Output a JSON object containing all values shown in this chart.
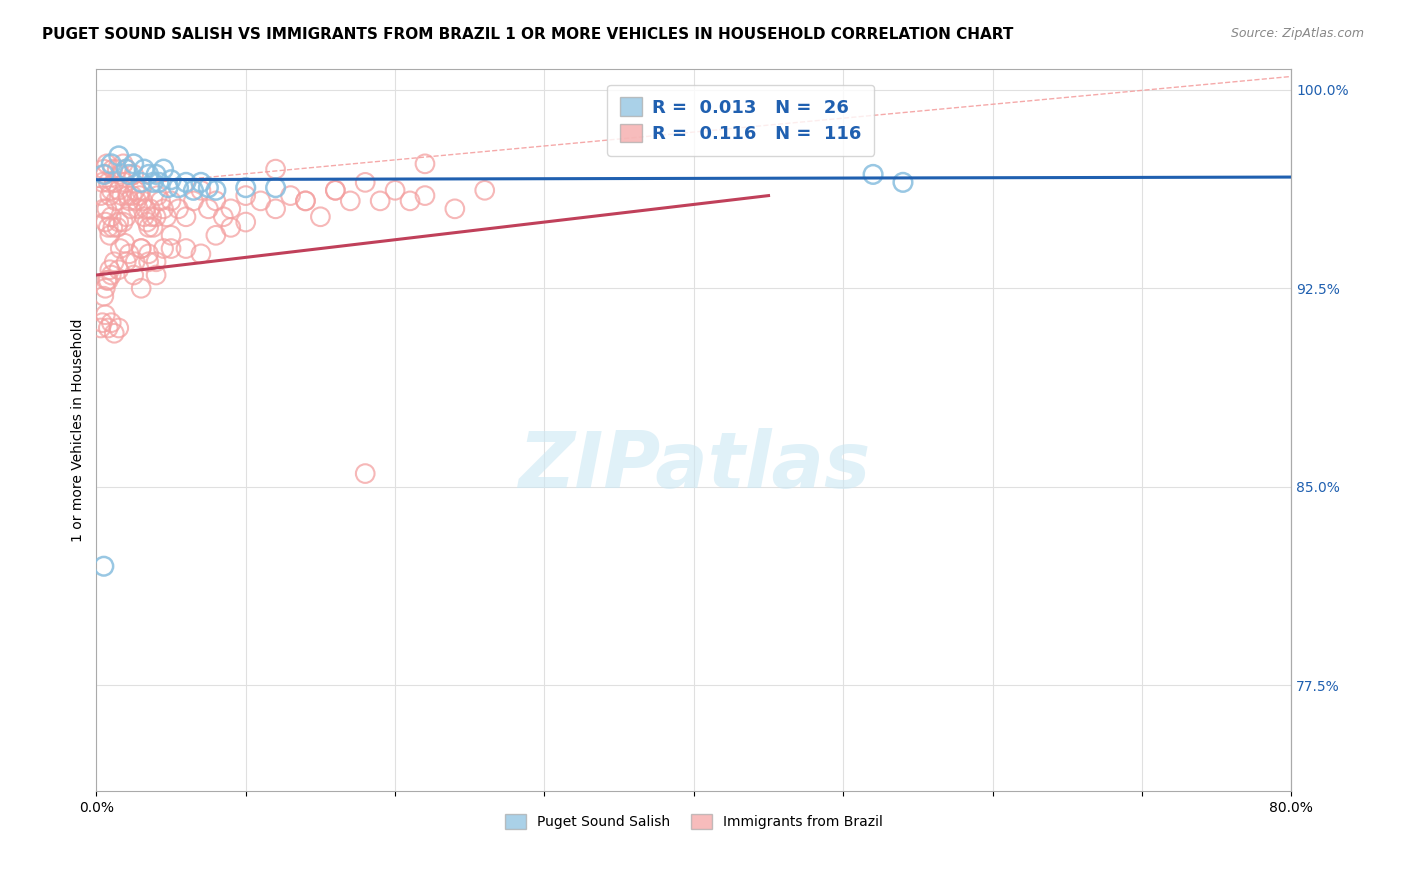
{
  "title": "PUGET SOUND SALISH VS IMMIGRANTS FROM BRAZIL 1 OR MORE VEHICLES IN HOUSEHOLD CORRELATION CHART",
  "source": "Source: ZipAtlas.com",
  "ylabel": "1 or more Vehicles in Household",
  "xlim": [
    0.0,
    0.8
  ],
  "ylim": [
    0.735,
    1.008
  ],
  "xticks": [
    0.0,
    0.1,
    0.2,
    0.3,
    0.4,
    0.5,
    0.6,
    0.7,
    0.8
  ],
  "xticklabels": [
    "0.0%",
    "",
    "",
    "",
    "",
    "",
    "",
    "",
    "80.0%"
  ],
  "yticks": [
    0.775,
    0.85,
    0.925,
    1.0
  ],
  "yticklabels": [
    "77.5%",
    "85.0%",
    "92.5%",
    "100.0%"
  ],
  "blue_color": "#87BEDF",
  "pink_color": "#F4A0A0",
  "blue_line_color": "#2060b0",
  "pink_line_color": "#c0405a",
  "grid_color": "#e0e0e0",
  "watermark_color": "#cce8f4",
  "title_fontsize": 11,
  "source_fontsize": 9,
  "axis_label_fontsize": 10,
  "tick_fontsize": 10,
  "legend_fontsize": 13,
  "blue_scatter_x": [
    0.005,
    0.01,
    0.015,
    0.02,
    0.022,
    0.025,
    0.03,
    0.032,
    0.035,
    0.038,
    0.04,
    0.042,
    0.045,
    0.048,
    0.05,
    0.055,
    0.06,
    0.065,
    0.07,
    0.075,
    0.08,
    0.1,
    0.12,
    0.52,
    0.54,
    0.005
  ],
  "blue_scatter_y": [
    0.968,
    0.972,
    0.975,
    0.97,
    0.968,
    0.972,
    0.965,
    0.97,
    0.968,
    0.965,
    0.968,
    0.965,
    0.97,
    0.963,
    0.966,
    0.963,
    0.965,
    0.962,
    0.965,
    0.963,
    0.962,
    0.963,
    0.963,
    0.968,
    0.965,
    0.82
  ],
  "pink_scatter_x": [
    0.003,
    0.004,
    0.005,
    0.005,
    0.006,
    0.006,
    0.007,
    0.007,
    0.008,
    0.008,
    0.009,
    0.009,
    0.01,
    0.01,
    0.011,
    0.011,
    0.012,
    0.013,
    0.014,
    0.014,
    0.015,
    0.015,
    0.016,
    0.017,
    0.018,
    0.018,
    0.019,
    0.02,
    0.02,
    0.021,
    0.022,
    0.023,
    0.024,
    0.025,
    0.026,
    0.027,
    0.028,
    0.029,
    0.03,
    0.031,
    0.032,
    0.033,
    0.034,
    0.035,
    0.036,
    0.037,
    0.038,
    0.04,
    0.041,
    0.043,
    0.045,
    0.047,
    0.05,
    0.055,
    0.06,
    0.065,
    0.07,
    0.075,
    0.08,
    0.085,
    0.09,
    0.1,
    0.11,
    0.12,
    0.13,
    0.14,
    0.15,
    0.16,
    0.17,
    0.18,
    0.19,
    0.2,
    0.21,
    0.22,
    0.24,
    0.26,
    0.03,
    0.035,
    0.04,
    0.05,
    0.02,
    0.025,
    0.03,
    0.015,
    0.01,
    0.008,
    0.006,
    0.005,
    0.007,
    0.009,
    0.012,
    0.016,
    0.019,
    0.022,
    0.026,
    0.03,
    0.035,
    0.04,
    0.045,
    0.05,
    0.06,
    0.07,
    0.08,
    0.09,
    0.1,
    0.12,
    0.14,
    0.16,
    0.18,
    0.22,
    0.003,
    0.004,
    0.006,
    0.008,
    0.01,
    0.012,
    0.015
  ],
  "pink_scatter_y": [
    0.96,
    0.965,
    0.97,
    0.955,
    0.968,
    0.95,
    0.972,
    0.955,
    0.965,
    0.948,
    0.96,
    0.945,
    0.962,
    0.952,
    0.97,
    0.948,
    0.965,
    0.958,
    0.97,
    0.948,
    0.962,
    0.95,
    0.968,
    0.96,
    0.972,
    0.95,
    0.965,
    0.97,
    0.952,
    0.96,
    0.958,
    0.955,
    0.96,
    0.968,
    0.962,
    0.958,
    0.955,
    0.96,
    0.962,
    0.958,
    0.952,
    0.955,
    0.95,
    0.948,
    0.955,
    0.952,
    0.948,
    0.952,
    0.96,
    0.958,
    0.955,
    0.952,
    0.958,
    0.955,
    0.952,
    0.958,
    0.962,
    0.955,
    0.958,
    0.952,
    0.955,
    0.96,
    0.958,
    0.97,
    0.96,
    0.958,
    0.952,
    0.962,
    0.958,
    0.855,
    0.958,
    0.962,
    0.958,
    0.96,
    0.955,
    0.962,
    0.94,
    0.935,
    0.93,
    0.94,
    0.935,
    0.93,
    0.925,
    0.932,
    0.93,
    0.928,
    0.925,
    0.922,
    0.928,
    0.932,
    0.935,
    0.94,
    0.942,
    0.938,
    0.935,
    0.94,
    0.938,
    0.935,
    0.94,
    0.945,
    0.94,
    0.938,
    0.945,
    0.948,
    0.95,
    0.955,
    0.958,
    0.962,
    0.965,
    0.972,
    0.91,
    0.912,
    0.915,
    0.91,
    0.912,
    0.908,
    0.91
  ],
  "diag_line_x": [
    0.0,
    0.8
  ],
  "diag_line_y": [
    0.963,
    1.005
  ],
  "blue_trend_x": [
    0.0,
    0.8
  ],
  "blue_trend_y": [
    0.966,
    0.967
  ],
  "pink_trend_x": [
    0.0,
    0.45
  ],
  "pink_trend_y": [
    0.93,
    0.96
  ]
}
